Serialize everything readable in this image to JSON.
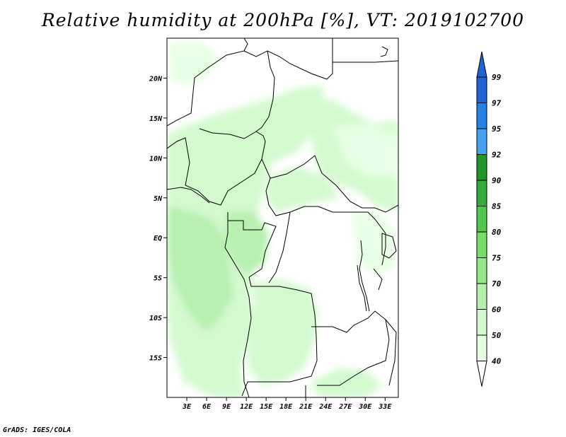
{
  "map": {
    "title": "Relative humidity at 200hPa [%], VT: 2019102700",
    "credit": "GrADS: IGES/COLA",
    "lat_labels": [
      "20N",
      "15N",
      "10N",
      "5N",
      "EQ",
      "5S",
      "10S",
      "15S"
    ],
    "lat_values": [
      20,
      15,
      10,
      5,
      0,
      -5,
      -10,
      -15
    ],
    "lon_labels": [
      "3E",
      "6E",
      "9E",
      "12E",
      "15E",
      "18E",
      "21E",
      "24E",
      "27E",
      "30E",
      "33E"
    ],
    "lon_values": [
      3,
      6,
      9,
      12,
      15,
      18,
      21,
      24,
      27,
      30,
      33
    ],
    "lon_range": [
      0,
      35
    ],
    "lat_range": [
      -20,
      25
    ]
  },
  "colorbar": {
    "levels": [
      "40",
      "50",
      "60",
      "70",
      "75",
      "80",
      "85",
      "90",
      "92",
      "95",
      "97",
      "99"
    ],
    "colors": [
      "#ffffff",
      "#e6ffe3",
      "#d2f9cd",
      "#b4f0ac",
      "#96e68a",
      "#78dc69",
      "#50c850",
      "#37aa3c",
      "#1e9628",
      "#46a0f0",
      "#2882e6",
      "#1e64d2",
      "#ffffff"
    ]
  }
}
